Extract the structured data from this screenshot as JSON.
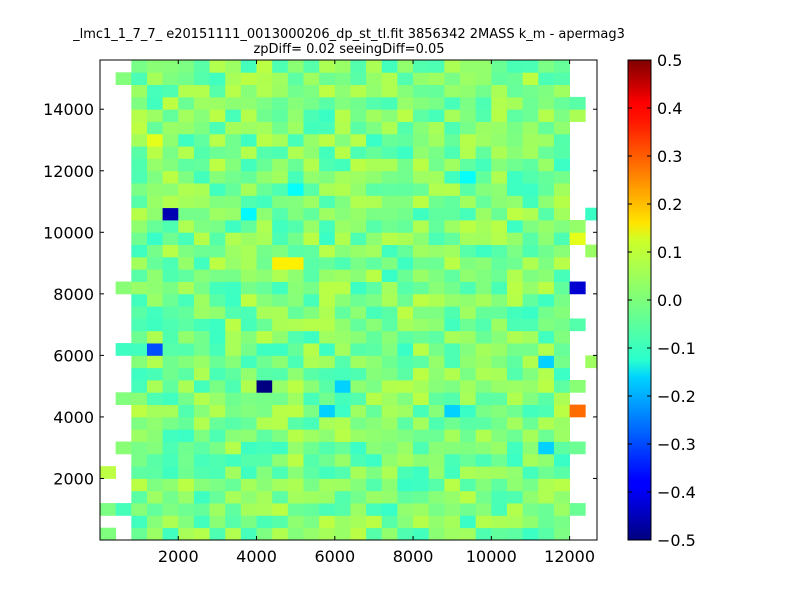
{
  "chart_data": {
    "type": "heatmap",
    "title": "_lmc1_1_7_7_ e20151111_0013000206_dp_st_tl.fit 3856342 2MASS k_m - apermag3",
    "subtitle": "zpDiff= 0.02 seeingDiff=0.05",
    "xlabel": "",
    "ylabel": "",
    "xlim": [
      0,
      12700
    ],
    "ylim": [
      0,
      15600
    ],
    "x_ticks": [
      2000,
      4000,
      6000,
      8000,
      10000,
      12000
    ],
    "y_ticks": [
      2000,
      4000,
      6000,
      8000,
      10000,
      12000,
      14000
    ],
    "x_tick_labels": [
      "2000",
      "4000",
      "6000",
      "8000",
      "10000",
      "12000"
    ],
    "y_tick_labels": [
      "2000",
      "4000",
      "6000",
      "8000",
      "10000",
      "12000",
      "14000"
    ],
    "colorbar": {
      "colormap": "jet",
      "min": -0.5,
      "max": 0.5,
      "ticks": [
        0.5,
        0.4,
        0.3,
        0.2,
        0.1,
        0.0,
        -0.1,
        -0.2,
        -0.3,
        -0.4,
        -0.5
      ],
      "tick_labels": [
        "0.5",
        "0.4",
        "0.3",
        "0.2",
        "0.1",
        "0.0",
        "−0.1",
        "−0.2",
        "−0.3",
        "−0.4",
        "−0.5"
      ]
    },
    "grid": false,
    "cell_size": 400,
    "cell_grid_origin": [
      0,
      0
    ],
    "outlier_cells": [
      {
        "x": 1400,
        "y": 10500,
        "value": -0.45
      },
      {
        "x": 1000,
        "y": 6100,
        "value": -0.3
      },
      {
        "x": 3800,
        "y": 4600,
        "value": -0.5
      },
      {
        "x": 4200,
        "y": 8600,
        "value": 0.14
      },
      {
        "x": 4600,
        "y": 8600,
        "value": 0.14
      },
      {
        "x": 12000,
        "y": 8100,
        "value": -0.42
      },
      {
        "x": 12000,
        "y": 4100,
        "value": 0.27
      },
      {
        "x": 12000,
        "y": 9600,
        "value": 0.1
      },
      {
        "x": 1000,
        "y": 12600,
        "value": 0.1
      },
      {
        "x": 5800,
        "y": 4600,
        "value": -0.17
      },
      {
        "x": 5400,
        "y": 4100,
        "value": -0.17
      },
      {
        "x": 8600,
        "y": 4100,
        "value": -0.17
      },
      {
        "x": 11000,
        "y": 5600,
        "value": -0.17
      },
      {
        "x": 11000,
        "y": 2600,
        "value": -0.17
      },
      {
        "x": 3400,
        "y": 10500,
        "value": -0.13
      },
      {
        "x": 4600,
        "y": 11000,
        "value": -0.12
      },
      {
        "x": 9000,
        "y": 11500,
        "value": -0.12
      }
    ]
  }
}
